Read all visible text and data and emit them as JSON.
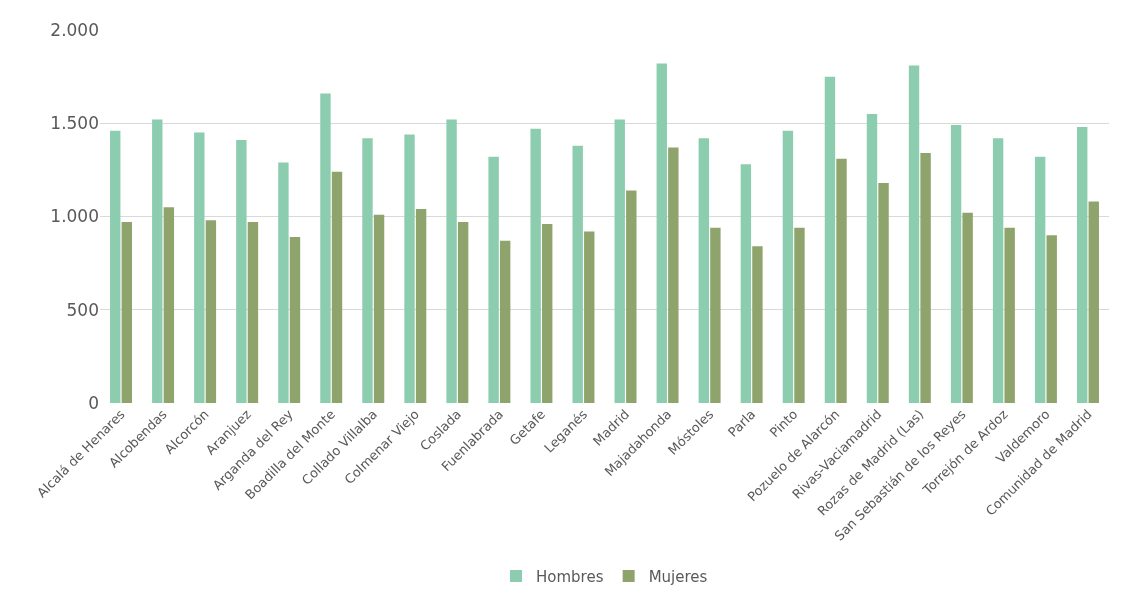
{
  "chart_data": {
    "type": "bar",
    "categories": [
      "Alcalá de Henares",
      "Alcobendas",
      "Alcorcón",
      "Aranjuez",
      "Arganda del Rey",
      "Boadilla del Monte",
      "Collado Villalba",
      "Colmenar Viejo",
      "Coslada",
      "Fuenlabrada",
      "Getafe",
      "Leganés",
      "Madrid",
      "Majadahonda",
      "Móstoles",
      "Parla",
      "Pinto",
      "Pozuelo de Alarcón",
      "Rivas-Vaciamadrid",
      "Rozas de Madrid (Las)",
      "San Sebastián de los Reyes",
      "Torrejón de Ardoz",
      "Valdemoro",
      "Comunidad de Madrid"
    ],
    "series": [
      {
        "name": "Hombres",
        "color": "#8ccdb0",
        "values": [
          1460,
          1520,
          1450,
          1410,
          1290,
          1660,
          1420,
          1440,
          1520,
          1320,
          1470,
          1380,
          1520,
          1820,
          1420,
          1280,
          1460,
          1750,
          1550,
          1810,
          1490,
          1420,
          1320,
          1480
        ]
      },
      {
        "name": "Mujeres",
        "color": "#8fa46c",
        "values": [
          970,
          1050,
          980,
          970,
          890,
          1240,
          1010,
          1040,
          970,
          870,
          960,
          920,
          1140,
          1370,
          940,
          840,
          940,
          1310,
          1180,
          1340,
          1020,
          940,
          900,
          1080
        ]
      }
    ],
    "ylim": [
      0,
      2000
    ],
    "yticks": [
      0,
      500,
      {
        "value": 1000,
        "label": "1.000"
      },
      {
        "value": 1500,
        "label": "1.500"
      },
      {
        "value": 2000,
        "label": "2.000"
      }
    ],
    "grid": "y",
    "legend": "bottom"
  }
}
